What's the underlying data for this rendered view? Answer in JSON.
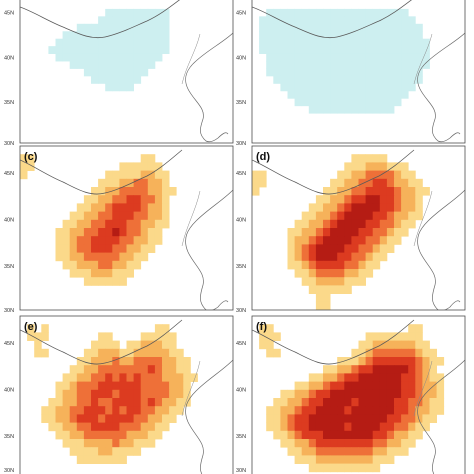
{
  "figure": {
    "panels": [
      {
        "id": "a",
        "label": "",
        "lat_ticks": [
          "45N",
          "40N",
          "35N",
          "30N"
        ],
        "palette": "cool",
        "field": [
          "000000000000000000000000000000",
          "000000000000000000000000000000",
          "000000000000111111111000000000",
          "000000000001111111111000000000",
          "000000001111111111111000000000",
          "000000111111111111111000000000",
          "000001111111111111111000000000",
          "000011111111111111111000000000",
          "000001111111111111110000000000",
          "000000011111111111100000000000",
          "000000000111111111000000000000",
          "000000000011111110000000000000",
          "000000000000111100000000000000",
          "000000000000000000000000000000",
          "000000000000000000000000000000",
          "000000000000000000000000000000",
          "000000000000000000000000000000",
          "000000000000000000000000000000",
          "000000000000000000000000000000",
          "000000000000000000000000000000"
        ]
      },
      {
        "id": "b",
        "label": "",
        "lat_ticks": [
          "45N",
          "40N",
          "35N",
          "30N"
        ],
        "palette": "cool",
        "field": [
          "000000000000000000000000000000",
          "000000000000000000000000000000",
          "001111111111111111111100000000",
          "011111111111111111111110000000",
          "011111111111111111111111000000",
          "011111111111111111111111000000",
          "011111111111111111111111100000",
          "011111111111111111111111100000",
          "001111111111111111111111100000",
          "001111111111111111111111100000",
          "001111111111111111111111000000",
          "000111111111111111111111000000",
          "000011111111111111111110000000",
          "000001111111111111111100000000",
          "000000111111111111111000000000",
          "000000001111111111110000000000",
          "000000000000000000000000000000",
          "000000000000000000000000000000",
          "000000000000000000000000000000",
          "000000000000000000000000000000"
        ]
      },
      {
        "id": "c",
        "label": "(c)",
        "lat_ticks": [
          "45N",
          "40N",
          "35N",
          "30N"
        ],
        "palette": "warm",
        "field": [
          "000000000000000000000000000000",
          "110000000000000001100000000000",
          "110000000000001111110000000000",
          "100000000000111112211000000000",
          "000000000001112233221000000000",
          "000000000011223333221100000000",
          "000000000112233443321000000000",
          "000000001122344443221000000000",
          "000000011223344433221000000000",
          "000000112233444332211000000000",
          "000001122334454332110000000000",
          "000001123344443322110000000000",
          "000001123344433221100000000000",
          "000001122333332211000000000000",
          "000000112223322110000000000000",
          "000000011122211100000000000000",
          "000000000111111000000000000000",
          "000000000000000000000000000000",
          "000000000000000000000000000000",
          "000000000000000000000000000000"
        ]
      },
      {
        "id": "d",
        "label": "(d)",
        "lat_ticks": [
          "45N",
          "40N",
          "35N",
          "30N"
        ],
        "palette": "warm",
        "field": [
          "000000000000000000000000000000",
          "000000000000001111100000000000",
          "000000000000011122211100000000",
          "110000000000112233332110000000",
          "110000000001122334432211000000",
          "100000000011223344443221100000",
          "000000000112234455443221000000",
          "000000001122345555443221000000",
          "000000011223455554432211000000",
          "000000112234555544332110000000",
          "000001122345555443321100000000",
          "000001223455554433211000000000",
          "000001234555544332110000000000",
          "000001234555443321100000000000",
          "000001123444433211000000000000",
          "000000112333322110000000000000",
          "000000011222211100000000000000",
          "000000001111110000000000000000",
          "000000000110000000000000000000",
          "000000000110000000000000000000"
        ]
      },
      {
        "id": "e",
        "label": "(e)",
        "lat_ticks": [
          "45N",
          "40N",
          "35N",
          "30N"
        ],
        "palette": "warm",
        "field": [
          "000000000000000000000000000000",
          "010100000000000000011000000000",
          "011100000001100001111100000000",
          "001000000011110112221100000000",
          "001100000112221122222110000000",
          "000000001122232233332211000000",
          "000000011223333333432211000000",
          "000000112233434343332221100000",
          "000001123334444443333221000000",
          "000001223344434443333221000000",
          "000011223343344443432211000000",
          "000112233444343443322110000000",
          "000112234443444433221100000000",
          "000011223344443332211000000000",
          "000001122333333222110000000000",
          "000000111222232211100000000000",
          "000000011112211110000000000000",
          "000000001111111000000000000000",
          "000000000000000000000000000000",
          "000000000000000000000000000000"
        ]
      },
      {
        "id": "f",
        "label": "(f)",
        "lat_ticks": [
          "45N",
          "40N",
          "35N",
          "30N"
        ],
        "palette": "warm",
        "field": [
          "000000000000000000000000000000",
          "011000000000000000000011000000",
          "011100000000000011111111000000",
          "011000000000000112222221100000",
          "001100000000001123333332110000",
          "000000000000111234444443211000",
          "000000000011223445555543210000",
          "000000001122344555555443211000",
          "000000112234455555555443221000",
          "000011223445555555555443221000",
          "000112234455554555554433211000",
          "001122344555545555554432211000",
          "001123445555555555544332110000",
          "001123445555545555443321100000",
          "000112344455555554432211000000",
          "000011223444444443322110000000",
          "000001122333333332211100000000",
          "000000111222222221110000000000",
          "000000001111111111000000000000",
          "000000000000000000000000000000"
        ]
      }
    ],
    "colors": {
      "cool_1": "#cdeff0",
      "warm_1": "#fbd98a",
      "warm_2": "#f6b25a",
      "warm_3": "#ee7038",
      "warm_4": "#dc3b20",
      "warm_5": "#b51c14",
      "boundary": "#5a5a5a",
      "coast": "#6a6a6a",
      "frame": "#4d4d4d"
    }
  }
}
